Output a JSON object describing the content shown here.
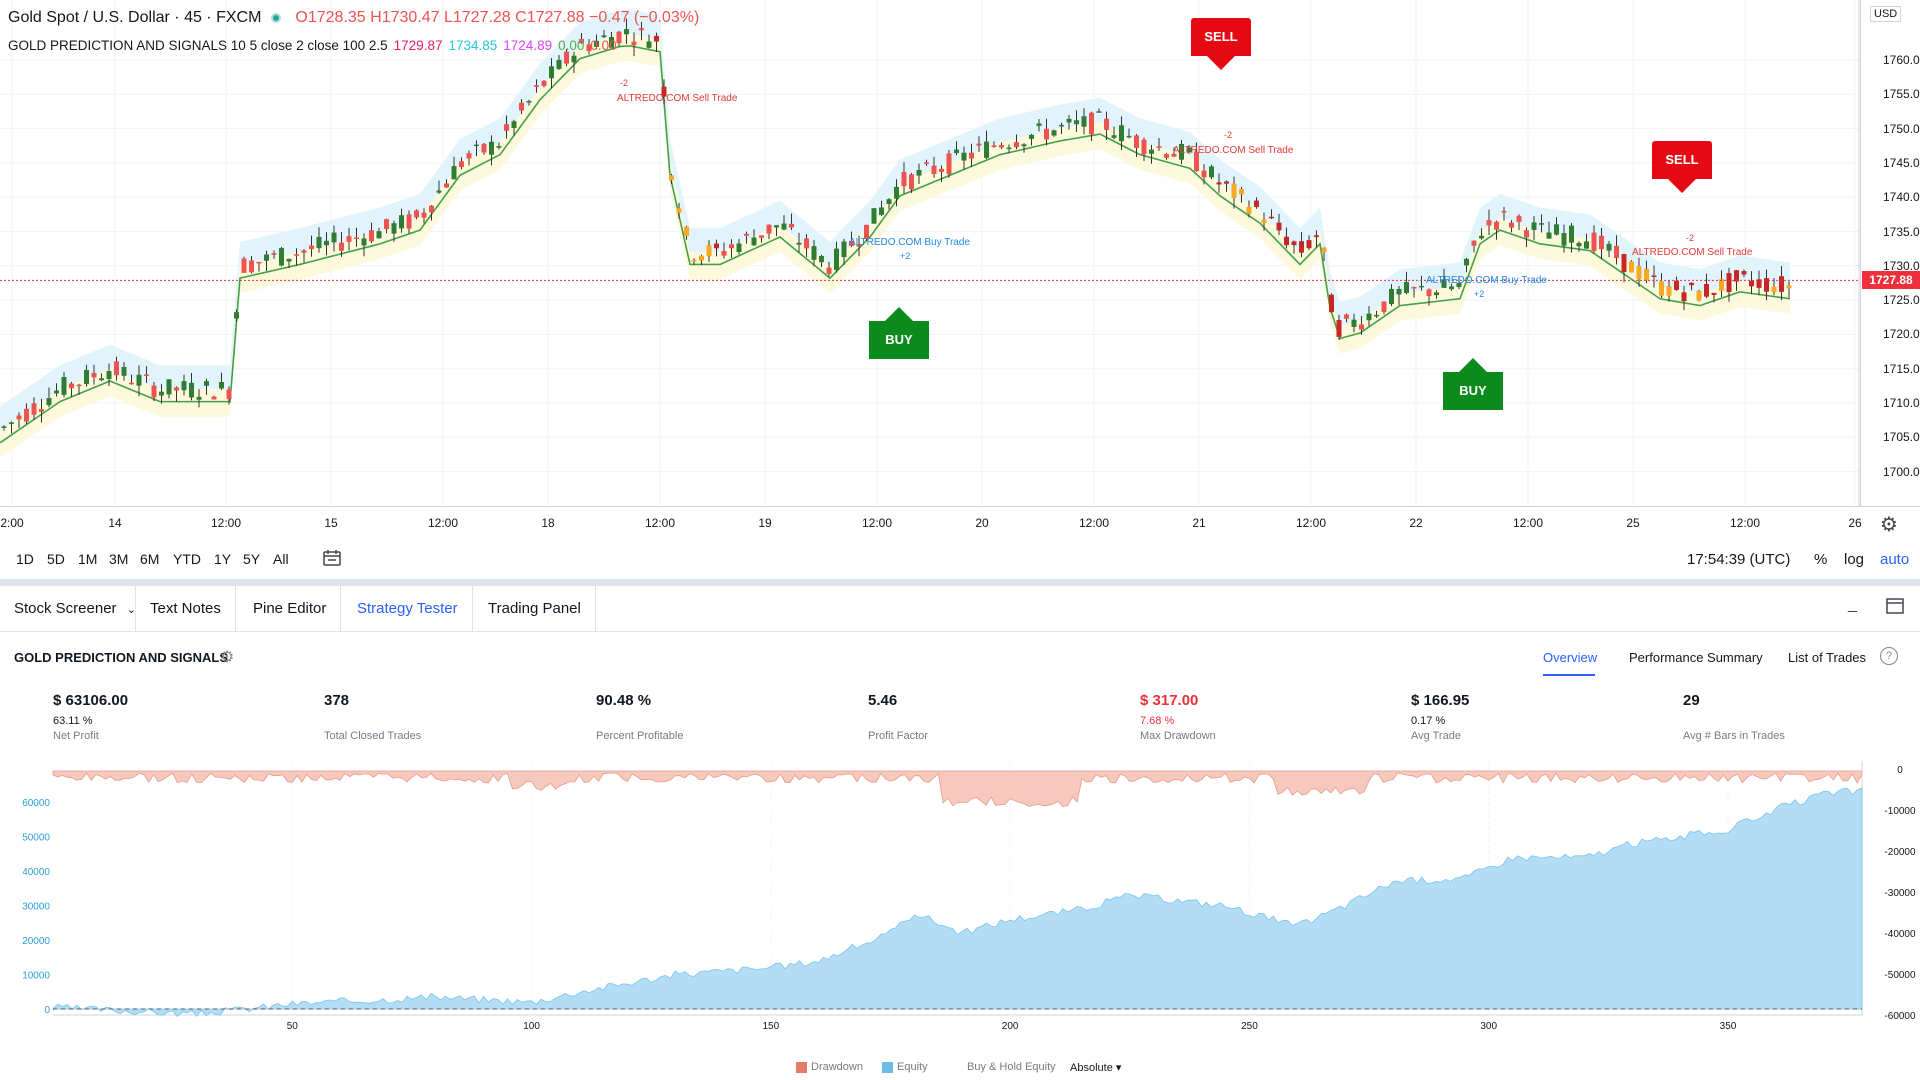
{
  "chart": {
    "symbol": "Gold Spot / U.S. Dollar · 45 · FXCM",
    "ohlc": "O1728.35 H1730.47 L1727.28 C1727.88 −0.47 (−0.03%)",
    "indicator_name": "GOLD PREDICTION AND SIGNALS 10 5 close 2 close 100 2.5",
    "indicator_values": [
      "1729.87",
      "1734.85",
      "1724.89",
      "0.00",
      "0.00"
    ],
    "currency": "USD",
    "last_price": "1727.88",
    "price_ticks": [
      "1760.00",
      "1755.00",
      "1750.00",
      "1745.00",
      "1740.00",
      "1735.00",
      "1730.00",
      "1725.00",
      "1720.00",
      "1715.00",
      "1710.00",
      "1705.00",
      "1700.00"
    ],
    "time_ticks": [
      "2:00",
      "14",
      "12:00",
      "15",
      "12:00",
      "18",
      "12:00",
      "19",
      "12:00",
      "20",
      "12:00",
      "21",
      "12:00",
      "22",
      "12:00",
      "25",
      "12:00",
      "26"
    ],
    "signals": [
      {
        "type": "sell",
        "label": "SELL"
      },
      {
        "type": "buy",
        "label": "BUY"
      },
      {
        "type": "buy",
        "label": "BUY"
      },
      {
        "type": "sell",
        "label": "SELL"
      }
    ],
    "trade_labels": [
      "ALTREDO.COM Sell Trade",
      "ALTREDO.COM Buy Trade",
      "ALTREDO.COM Sell Trade",
      "ALTREDO.COM Buy Trade",
      "ALTREDO.COM Sell Trade"
    ],
    "trade_counts": [
      "-2",
      "+2",
      "-2",
      "+2",
      "-2"
    ]
  },
  "range_bar": {
    "ranges": [
      "1D",
      "5D",
      "1M",
      "3M",
      "6M",
      "YTD",
      "1Y",
      "5Y",
      "All"
    ],
    "clock": "17:54:39 (UTC)",
    "percent": "%",
    "log": "log",
    "auto": "auto"
  },
  "tabs": [
    {
      "label": "Stock Screener"
    },
    {
      "label": "Text Notes"
    },
    {
      "label": "Pine Editor"
    },
    {
      "label": "Strategy Tester",
      "active": true
    },
    {
      "label": "Trading Panel"
    }
  ],
  "strategy": {
    "name": "GOLD PREDICTION AND SIGNALS",
    "views": [
      "Overview",
      "Performance Summary",
      "List of Trades"
    ],
    "active_view": "Overview"
  },
  "metrics": [
    {
      "value": "$ 63106.00",
      "sub": "63.11 %",
      "label": "Net Profit"
    },
    {
      "value": "378",
      "sub": "",
      "label": "Total Closed Trades"
    },
    {
      "value": "90.48 %",
      "sub": "",
      "label": "Percent Profitable"
    },
    {
      "value": "5.46",
      "sub": "",
      "label": "Profit Factor"
    },
    {
      "value": "$ 317.00",
      "sub": "7.68 %",
      "label": "Max Drawdown",
      "negative": true
    },
    {
      "value": "$ 166.95",
      "sub": "0.17 %",
      "label": "Avg Trade"
    },
    {
      "value": "29",
      "sub": "",
      "label": "Avg # Bars in Trades"
    }
  ],
  "equity_chart": {
    "left_ticks": [
      "60000",
      "50000",
      "40000",
      "30000",
      "20000",
      "10000",
      "0"
    ],
    "right_ticks": [
      "0",
      "-10000",
      "-20000",
      "-30000",
      "-40000",
      "-50000",
      "-60000"
    ],
    "x_ticks": [
      "50",
      "100",
      "150",
      "200",
      "250",
      "300",
      "350"
    ],
    "legend": {
      "drawdown": "Drawdown",
      "equity": "Equity",
      "buy_hold": "Buy & Hold Equity",
      "mode": "Absolute ▾"
    },
    "colors": {
      "equity": "#b3dcf5",
      "drawdown": "#f7c9bd"
    }
  }
}
